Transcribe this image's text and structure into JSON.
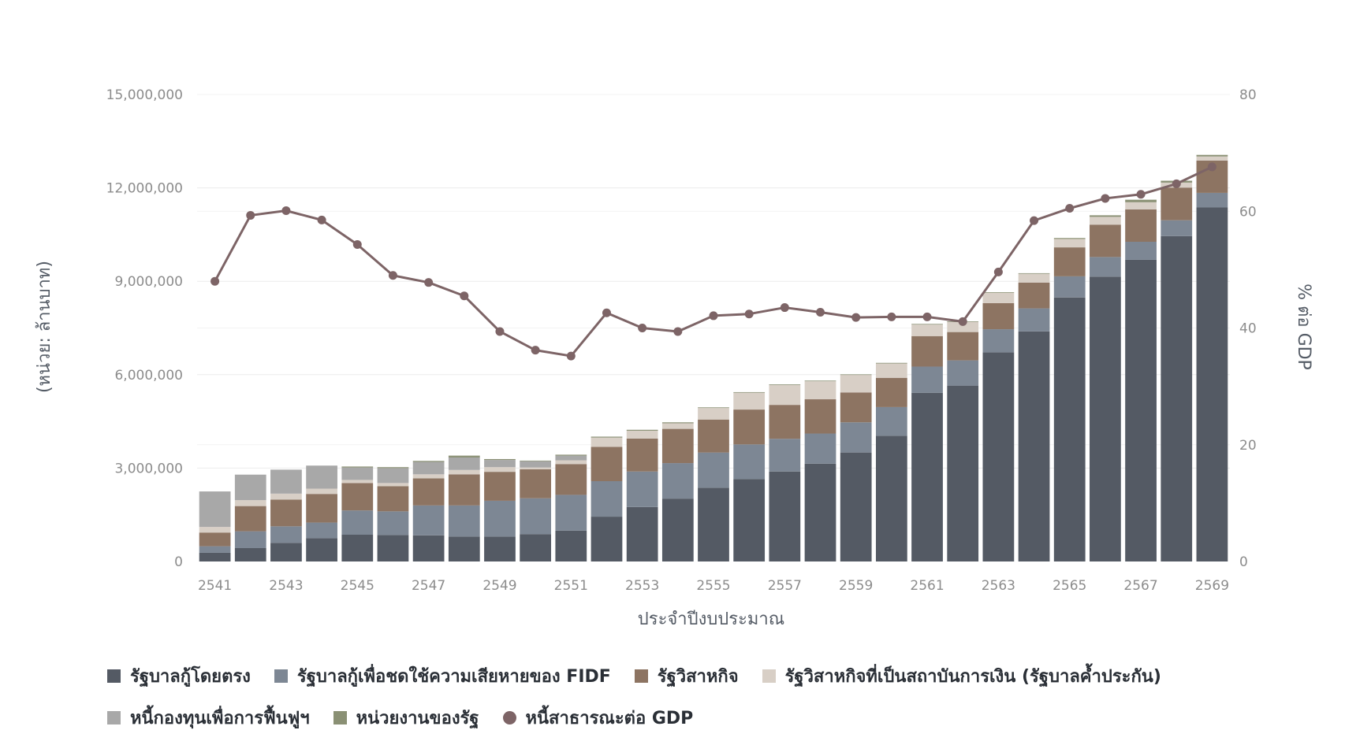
{
  "chart_data": {
    "type": "bar",
    "stacked": true,
    "xlabel": "ประจำปีงบประมาณ",
    "ylabel": "(หน่วย: ล้านบาท)",
    "y2label": "% ต่อ GDP",
    "ylim": [
      0,
      15000000
    ],
    "y2lim": [
      0,
      80
    ],
    "yticks": [
      0,
      3000000,
      6000000,
      9000000,
      12000000,
      15000000
    ],
    "ytick_labels": [
      "0",
      "3,000,000",
      "6,000,000",
      "9,000,000",
      "12,000,000",
      "15,000,000"
    ],
    "y2ticks": [
      0,
      20,
      40,
      60,
      80
    ],
    "y2tick_labels": [
      "0",
      "20",
      "40",
      "60",
      "80"
    ],
    "grid": true,
    "legend_position": "bottom",
    "categories": [
      "2541",
      "2542",
      "2543",
      "2544",
      "2545",
      "2546",
      "2547",
      "2548",
      "2549",
      "2550",
      "2551",
      "2552",
      "2553",
      "2554",
      "2555",
      "2556",
      "2557",
      "2558",
      "2559",
      "2560",
      "2561",
      "2562",
      "2563",
      "2564",
      "2565",
      "2566",
      "2567",
      "2568",
      "2569"
    ],
    "xtick_labels": [
      "2541",
      "2543",
      "2545",
      "2547",
      "2549",
      "2551",
      "2553",
      "2555",
      "2557",
      "2559",
      "2561",
      "2563",
      "2565",
      "2567",
      "2569"
    ],
    "series": [
      {
        "name": "รัฐบาลกู้โดยตรง",
        "color": "#545a64",
        "values": [
          280000,
          430000,
          600000,
          750000,
          860000,
          850000,
          840000,
          800000,
          800000,
          880000,
          990000,
          1440000,
          1750000,
          2020000,
          2370000,
          2650000,
          2890000,
          3140000,
          3500000,
          4040000,
          5420000,
          5650000,
          6720000,
          7390000,
          8480000,
          9150000,
          9690000,
          10450000,
          11370000
        ]
      },
      {
        "name": "รัฐบาลกู้เพื่อชดใช้ความเสียหายของ FIDF",
        "color": "#7d8794",
        "values": [
          210000,
          540000,
          530000,
          500000,
          780000,
          760000,
          960000,
          1000000,
          1150000,
          1150000,
          1150000,
          1140000,
          1140000,
          1140000,
          1130000,
          1110000,
          1050000,
          970000,
          970000,
          920000,
          840000,
          810000,
          740000,
          740000,
          680000,
          630000,
          580000,
          510000,
          470000
        ]
      },
      {
        "name": "รัฐวิสาหกิจ",
        "color": "#8d7462",
        "values": [
          440000,
          810000,
          860000,
          920000,
          880000,
          810000,
          870000,
          1000000,
          930000,
          930000,
          990000,
          1100000,
          1060000,
          1100000,
          1060000,
          1120000,
          1090000,
          1100000,
          960000,
          940000,
          980000,
          910000,
          840000,
          830000,
          930000,
          1040000,
          1040000,
          1050000,
          1040000
        ]
      },
      {
        "name": "รัฐวิสาหกิจที่เป็นสถาบันการเงิน (รัฐบาลค้ำประกัน)",
        "color": "#d8cfc6",
        "values": [
          180000,
          190000,
          190000,
          170000,
          100000,
          100000,
          130000,
          140000,
          150000,
          60000,
          120000,
          300000,
          250000,
          180000,
          370000,
          540000,
          640000,
          580000,
          560000,
          460000,
          370000,
          320000,
          330000,
          280000,
          270000,
          250000,
          230000,
          160000,
          130000
        ]
      },
      {
        "name": "หนี้กองทุนเพื่อการฟื้นฟูฯ",
        "color": "#a8a8a8",
        "values": [
          1140000,
          820000,
          770000,
          740000,
          400000,
          480000,
          400000,
          400000,
          230000,
          200000,
          150000,
          0,
          0,
          0,
          0,
          0,
          0,
          0,
          0,
          0,
          0,
          0,
          0,
          0,
          0,
          0,
          0,
          0,
          0
        ]
      },
      {
        "name": "หน่วยงานของรัฐ",
        "color": "#8a9074",
        "values": [
          0,
          0,
          0,
          0,
          30000,
          30000,
          30000,
          60000,
          30000,
          20000,
          30000,
          30000,
          30000,
          30000,
          20000,
          20000,
          20000,
          20000,
          20000,
          20000,
          20000,
          20000,
          20000,
          20000,
          30000,
          50000,
          80000,
          60000,
          50000
        ]
      },
      {
        "name": "หนี้สาธารณะต่อ GDP",
        "type": "line",
        "axis": "right",
        "color": "#7d6466",
        "values": [
          48.0,
          59.3,
          60.1,
          58.5,
          54.3,
          49.0,
          47.8,
          45.5,
          39.4,
          36.2,
          35.2,
          42.6,
          40.0,
          39.4,
          42.1,
          42.4,
          43.5,
          42.7,
          41.8,
          41.9,
          41.9,
          41.1,
          49.6,
          58.4,
          60.5,
          62.2,
          62.9,
          64.7,
          67.6
        ]
      }
    ]
  }
}
